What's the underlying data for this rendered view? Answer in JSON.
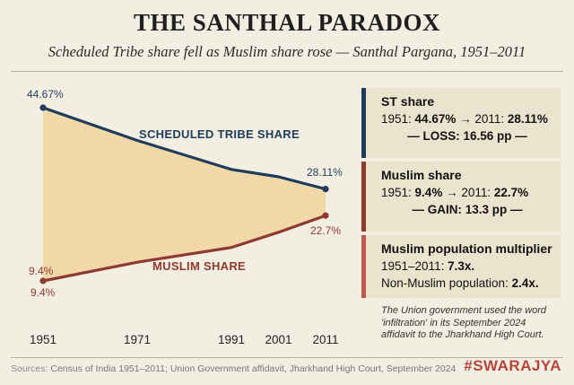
{
  "header": {
    "title": "THE SANTHAL PARADOX",
    "subtitle": "Scheduled Tribe share fell as Muslim share rose — Santhal Pargana, 1951–2011"
  },
  "chart_data": {
    "type": "area",
    "x": [
      1951,
      1971,
      1991,
      2001,
      2011
    ],
    "xticks": [
      "1951",
      "1971",
      "1991",
      "2001",
      "2011"
    ],
    "ylim": [
      0,
      50
    ],
    "grid": false,
    "series": [
      {
        "name": "SCHEDULED TRIBE SHARE",
        "values": [
          44.67,
          38.0,
          32.1,
          30.6,
          28.11
        ],
        "color": "#1f3d5a"
      },
      {
        "name": "MUSLIM SHARE",
        "values": [
          9.4,
          13.2,
          16.2,
          19.3,
          22.7
        ],
        "color": "#8e3a30"
      }
    ],
    "fill_between_color": "#f1d6a5",
    "data_labels": {
      "st_start": "44.67%",
      "st_end": "28.11%",
      "muslim_start_a": "9.4%",
      "muslim_start_b": "9.4%",
      "muslim_end": "22.7%"
    }
  },
  "panels": {
    "st": {
      "title": "ST share",
      "line_prefix": "1951: ",
      "v1951": "44.67%",
      "arrow": " → 2011: ",
      "v2011": "28.11%",
      "summary": "— LOSS: 16.56 pp —",
      "color": "#1f3d5a"
    },
    "muslim": {
      "title": "Muslim share",
      "line_prefix": "1951: ",
      "v1951": "9.4%",
      "arrow": " → 2011: ",
      "v2011": "22.7%",
      "summary": "— GAIN: 13.3 pp —",
      "color": "#8e3a30"
    },
    "multiplier": {
      "title": "Muslim population multiplier",
      "line1_prefix": "1951–2011: ",
      "line1_value": "7.3x.",
      "line2_prefix": "Non-Muslim population: ",
      "line2_value": "2.4x.",
      "color": "#c0574c"
    }
  },
  "note": "The Union government used the word 'infiltration' in its September 2024 affidavit to the Jharkhand High Court.",
  "footer": {
    "source_label": "Sources: ",
    "source_text": "Census of India 1951–2011; Union Government affidavit, Jharkhand High Court, September 2024",
    "brand": "#SWARAJYA"
  }
}
